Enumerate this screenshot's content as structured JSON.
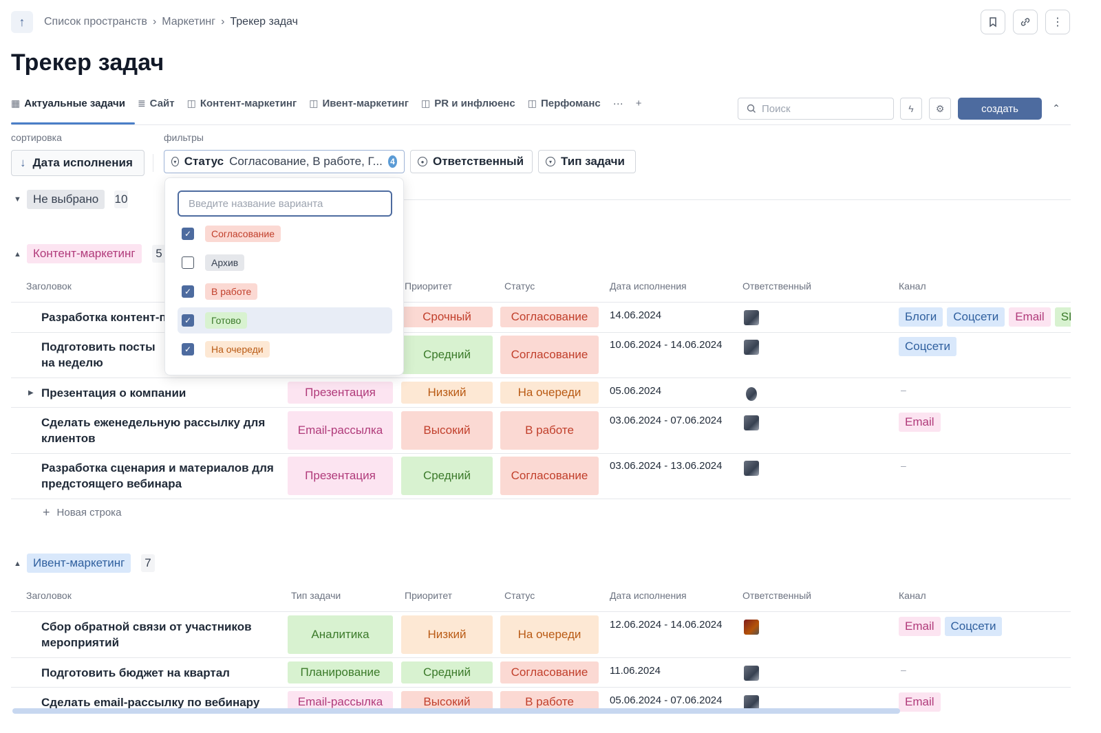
{
  "breadcrumb": {
    "items": [
      "Список пространств",
      "Маркетинг"
    ],
    "current": "Трекер задач",
    "sep": "›"
  },
  "page_title": "Трекер задач",
  "tabs": [
    {
      "label": "Актуальные задачи",
      "icon": "table-icon"
    },
    {
      "label": "Сайт",
      "icon": "list-icon"
    },
    {
      "label": "Контент-маркетинг",
      "icon": "board-icon"
    },
    {
      "label": "Ивент-маркетинг",
      "icon": "board-icon"
    },
    {
      "label": "PR и инфлюенс",
      "icon": "board-icon"
    },
    {
      "label": "Перфоманс",
      "icon": "board-icon"
    }
  ],
  "toolbar": {
    "search_placeholder": "Поиск",
    "create_label": "создать"
  },
  "sort": {
    "label": "сортировка",
    "value": "Дата исполнения"
  },
  "filters": {
    "label": "фильтры",
    "status_label": "Статус",
    "status_value": "Согласование, В работе, Г...",
    "status_count": "4",
    "assignee_label": "Ответственный",
    "type_label": "Тип задачи"
  },
  "dropdown": {
    "placeholder": "Введите название варианта",
    "options": [
      {
        "label": "Согласование",
        "checked": true,
        "color": "#fbd9d3"
      },
      {
        "label": "Архив",
        "checked": false,
        "color": "#e5e7eb"
      },
      {
        "label": "В работе",
        "checked": true,
        "color": "#fbd9d3"
      },
      {
        "label": "Готово",
        "checked": true,
        "color": "#d8f2d0"
      },
      {
        "label": "На очереди",
        "checked": true,
        "color": "#fde8d4"
      }
    ]
  },
  "group_none": {
    "label": "Не выбрано",
    "count": "10"
  },
  "columns": [
    "Заголовок",
    "Тип задачи",
    "Приоритет",
    "Статус",
    "Дата исполнения",
    "Ответственный",
    "Канал"
  ],
  "group1": {
    "label": "Контент-маркетинг",
    "count": "5",
    "rows": [
      {
        "title": "Разработка контент-плана на месяц",
        "type": "",
        "priority": "Срочный",
        "status": "Согласование",
        "date": "14.06.2024",
        "channels": [
          "Блоги",
          "Соцсети",
          "Email",
          "SEO"
        ]
      },
      {
        "title": "Подготовить посты на неделю",
        "type": "",
        "priority": "Средний",
        "status": "Согласование",
        "date": "10.06.2024 - 14.06.2024",
        "channels": [
          "Соцсети"
        ]
      },
      {
        "title": "Презентация о компании",
        "type": "Презентация",
        "priority": "Низкий",
        "status": "На очереди",
        "date": "05.06.2024",
        "channels": []
      },
      {
        "title": "Сделать еженедельную рассылку для клиентов",
        "type": "Email-рассылка",
        "priority": "Высокий",
        "status": "В работе",
        "date": "03.06.2024 - 07.06.2024",
        "channels": [
          "Email"
        ]
      },
      {
        "title": "Разработка сценария и материалов для предстоящего вебинара",
        "type": "Презентация",
        "priority": "Средний",
        "status": "Согласование",
        "date": "03.06.2024 - 13.06.2024",
        "channels": []
      }
    ],
    "new_row": "Новая строка"
  },
  "group2": {
    "label": "Ивент-маркетинг",
    "count": "7",
    "rows": [
      {
        "title": "Сбор обратной связи от участников мероприятий",
        "type": "Аналитика",
        "priority": "Низкий",
        "status": "На очереди",
        "date": "12.06.2024 - 14.06.2024",
        "channels": [
          "Email",
          "Соцсети"
        ]
      },
      {
        "title": "Подготовить бюджет на квартал",
        "type": "Планирование",
        "priority": "Средний",
        "status": "Согласование",
        "date": "11.06.2024",
        "channels": []
      },
      {
        "title": "Сделать email-рассылку по вебинару",
        "type": "Email-рассылка",
        "priority": "Высокий",
        "status": "В работе",
        "date": "05.06.2024 - 07.06.2024",
        "channels": [
          "Email"
        ]
      }
    ]
  },
  "dash": "–"
}
